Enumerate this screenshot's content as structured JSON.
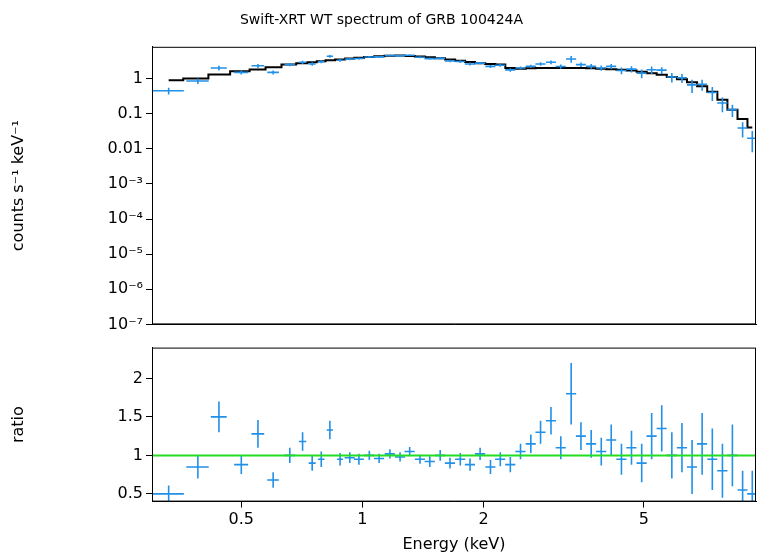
{
  "chart_data": [
    {
      "type": "scatter",
      "title": "Swift-XRT WT spectrum of GRB 100424A",
      "ylabel": "counts s⁻¹ keV⁻¹",
      "log": true,
      "grid": false,
      "tick_labels": "y",
      "xlim": [
        0.3,
        9.5
      ],
      "xticks": [
        0.5,
        1,
        2,
        5
      ],
      "ylim": [
        1e-07,
        8
      ],
      "yticks": [
        {
          "value": 1e-07,
          "label": "10⁻⁷"
        },
        {
          "value": 1e-06,
          "label": "10⁻⁶"
        },
        {
          "value": 1e-05,
          "label": "10⁻⁵"
        },
        {
          "value": 0.0001,
          "label": "10⁻⁴"
        },
        {
          "value": 0.001,
          "label": "10⁻³"
        },
        0.01,
        0.1,
        1
      ],
      "x": [
        0.33,
        0.39,
        0.44,
        0.5,
        0.55,
        0.6,
        0.66,
        0.71,
        0.75,
        0.79,
        0.83,
        0.88,
        0.93,
        0.98,
        1.04,
        1.1,
        1.17,
        1.24,
        1.31,
        1.39,
        1.47,
        1.56,
        1.65,
        1.75,
        1.85,
        1.96,
        2.08,
        2.2,
        2.33,
        2.47,
        2.62,
        2.77,
        2.94,
        3.11,
        3.3,
        3.49,
        3.7,
        3.92,
        4.15,
        4.4,
        4.66,
        4.94,
        5.23,
        5.54,
        5.87,
        6.22,
        6.59,
        6.98,
        7.4,
        7.84,
        8.3,
        8.8,
        9.3
      ],
      "x_err": [
        0.03,
        0.025,
        0.02,
        0.02,
        0.02,
        0.02,
        0.02,
        0.015,
        0.015,
        0.015,
        0.015,
        0.015,
        0.027,
        0.028,
        0.03,
        0.032,
        0.034,
        0.036,
        0.038,
        0.04,
        0.043,
        0.045,
        0.048,
        0.051,
        0.054,
        0.057,
        0.06,
        0.064,
        0.068,
        0.072,
        0.076,
        0.08,
        0.085,
        0.09,
        0.096,
        0.1,
        0.107,
        0.114,
        0.12,
        0.128,
        0.135,
        0.143,
        0.152,
        0.16,
        0.17,
        0.18,
        0.19,
        0.2,
        0.21,
        0.23,
        0.24,
        0.25,
        0.27
      ],
      "series": [
        {
          "color": "#2090e8",
          "marker": "cross",
          "values": [
            0.45,
            0.85,
            2.0,
            1.5,
            2.3,
            1.5,
            2.5,
            2.9,
            2.6,
            3.0,
            4.3,
            3.3,
            3.59,
            3.71,
            4.1,
            4.13,
            4.54,
            4.41,
            4.62,
            4.04,
            3.68,
            3.75,
            3.15,
            3.04,
            2.6,
            2.75,
            2.21,
            2.38,
            1.76,
            2.0,
            2.24,
            2.6,
            2.9,
            2.2,
            3.6,
            2.48,
            2.24,
            2.0,
            2.22,
            1.69,
            1.85,
            1.41,
            1.78,
            1.73,
            1.1,
            1.05,
            0.66,
            0.69,
            0.4,
            0.2,
            0.13,
            0.039,
            0.02
          ],
          "y_err": [
            0.1,
            0.15,
            0.3,
            0.2,
            0.3,
            0.2,
            0.25,
            0.3,
            0.3,
            0.3,
            0.4,
            0.3,
            0.26,
            0.27,
            0.25,
            0.26,
            0.27,
            0.27,
            0.26,
            0.26,
            0.28,
            0.26,
            0.25,
            0.26,
            0.24,
            0.22,
            0.23,
            0.23,
            0.2,
            0.19,
            0.23,
            0.3,
            0.36,
            0.3,
            0.8,
            0.36,
            0.35,
            0.34,
            0.37,
            0.36,
            0.37,
            0.39,
            0.43,
            0.38,
            0.33,
            0.3,
            0.27,
            0.24,
            0.17,
            0.09,
            0.05,
            0.018,
            0.012
          ]
        },
        {
          "color": "#000000",
          "line_style": "steps",
          "values": [
            0.9,
            1.0,
            1.3,
            1.6,
            1.8,
            2.1,
            2.5,
            2.7,
            2.9,
            3.1,
            3.3,
            3.5,
            3.7,
            3.9,
            4.1,
            4.3,
            4.45,
            4.5,
            4.4,
            4.25,
            4.0,
            3.75,
            3.5,
            3.2,
            2.95,
            2.7,
            2.6,
            2.5,
            2.0,
            1.9,
            1.95,
            2.0,
            2.0,
            2.0,
            2.0,
            1.98,
            1.95,
            1.9,
            1.85,
            1.78,
            1.68,
            1.57,
            1.42,
            1.28,
            1.1,
            0.95,
            0.78,
            0.6,
            0.42,
            0.25,
            0.13,
            0.07,
            0.04
          ]
        }
      ]
    },
    {
      "type": "scatter",
      "xlabel": "Energy (keV)",
      "ylabel": "ratio",
      "log": "x",
      "grid": false,
      "xlim": [
        0.3,
        9.5
      ],
      "xticks": [
        0.5,
        1,
        2,
        5
      ],
      "ylim": [
        0.4,
        2.4
      ],
      "yticks": [
        0.5,
        1,
        1.5,
        2
      ],
      "reference_line": {
        "y": 1,
        "color": "#22dd22"
      },
      "x": [
        0.33,
        0.39,
        0.44,
        0.5,
        0.55,
        0.6,
        0.66,
        0.71,
        0.75,
        0.79,
        0.83,
        0.88,
        0.93,
        0.98,
        1.04,
        1.1,
        1.17,
        1.24,
        1.31,
        1.39,
        1.47,
        1.56,
        1.65,
        1.75,
        1.85,
        1.96,
        2.08,
        2.2,
        2.33,
        2.47,
        2.62,
        2.77,
        2.94,
        3.11,
        3.3,
        3.49,
        3.7,
        3.92,
        4.15,
        4.4,
        4.66,
        4.94,
        5.23,
        5.54,
        5.87,
        6.22,
        6.59,
        6.98,
        7.4,
        7.84,
        8.3,
        8.8,
        9.3
      ],
      "x_err": [
        0.03,
        0.025,
        0.02,
        0.02,
        0.02,
        0.02,
        0.02,
        0.015,
        0.015,
        0.015,
        0.015,
        0.015,
        0.027,
        0.028,
        0.03,
        0.032,
        0.034,
        0.036,
        0.038,
        0.04,
        0.043,
        0.045,
        0.048,
        0.051,
        0.054,
        0.057,
        0.06,
        0.064,
        0.068,
        0.072,
        0.076,
        0.08,
        0.085,
        0.09,
        0.096,
        0.1,
        0.107,
        0.114,
        0.12,
        0.128,
        0.135,
        0.143,
        0.152,
        0.16,
        0.17,
        0.18,
        0.19,
        0.2,
        0.21,
        0.23,
        0.24,
        0.25,
        0.27
      ],
      "series": [
        {
          "color": "#2090e8",
          "marker": "cross",
          "values": [
            0.5,
            0.85,
            1.5,
            0.88,
            1.28,
            0.68,
            1.0,
            1.18,
            0.9,
            0.95,
            1.33,
            0.95,
            0.97,
            0.95,
            1.0,
            0.96,
            1.02,
            0.98,
            1.05,
            0.95,
            0.92,
            1.0,
            0.9,
            0.95,
            0.88,
            1.02,
            0.85,
            0.95,
            0.88,
            1.05,
            1.15,
            1.3,
            1.45,
            1.1,
            1.8,
            1.25,
            1.15,
            1.05,
            1.2,
            0.95,
            1.1,
            0.9,
            1.25,
            1.35,
            1.0,
            1.1,
            0.85,
            1.15,
            0.95,
            0.8,
            1.0,
            0.55,
            0.5
          ],
          "y_err": [
            0.11,
            0.15,
            0.2,
            0.12,
            0.18,
            0.1,
            0.1,
            0.12,
            0.1,
            0.1,
            0.12,
            0.08,
            0.07,
            0.07,
            0.06,
            0.06,
            0.06,
            0.06,
            0.06,
            0.06,
            0.07,
            0.07,
            0.07,
            0.08,
            0.08,
            0.08,
            0.09,
            0.09,
            0.1,
            0.1,
            0.12,
            0.15,
            0.18,
            0.15,
            0.4,
            0.18,
            0.18,
            0.18,
            0.2,
            0.2,
            0.22,
            0.25,
            0.3,
            0.3,
            0.3,
            0.32,
            0.35,
            0.4,
            0.4,
            0.35,
            0.4,
            0.25,
            0.3
          ]
        }
      ]
    }
  ]
}
